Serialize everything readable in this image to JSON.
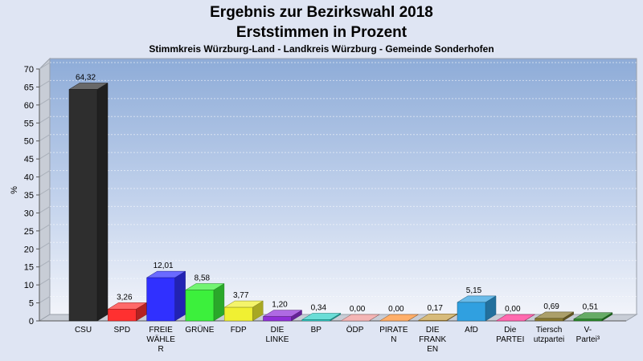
{
  "chart_data": {
    "type": "bar",
    "title": "Ergebnis zur Bezirkswahl 2018",
    "title_line2": "Erststimmen in Prozent",
    "subtitle": "Stimmkreis Würzburg-Land - Landkreis Würzburg - Gemeinde Sonderhofen",
    "ylabel": "%",
    "ylim": [
      0,
      70
    ],
    "yticks": [
      "0",
      "5",
      "10",
      "15",
      "20",
      "25",
      "30",
      "35",
      "40",
      "45",
      "50",
      "55",
      "60",
      "65",
      "70"
    ],
    "categories": [
      [
        "CSU"
      ],
      [
        "SPD"
      ],
      [
        "FREIE",
        "WÄHLE",
        "R"
      ],
      [
        "GRÜNE"
      ],
      [
        "FDP"
      ],
      [
        "DIE",
        "LINKE"
      ],
      [
        "BP"
      ],
      [
        "ÖDP"
      ],
      [
        "PIRATE",
        "N"
      ],
      [
        "DIE",
        "FRANK",
        "EN"
      ],
      [
        "AfD"
      ],
      [
        "Die",
        "PARTEI"
      ],
      [
        "Tiersch",
        "utzpartei"
      ],
      [
        "V-",
        "Partei³"
      ]
    ],
    "values": [
      64.32,
      3.26,
      12.01,
      8.58,
      3.77,
      1.2,
      0.34,
      0.0,
      0.0,
      0.17,
      5.15,
      0.0,
      0.69,
      0.51
    ],
    "value_labels": [
      "64,32",
      "3,26",
      "12,01",
      "8,58",
      "3,77",
      "1,20",
      "0,34",
      "0,00",
      "0,00",
      "0,17",
      "5,15",
      "0,00",
      "0,69",
      "0,51"
    ],
    "colors": [
      "#2e2e2e",
      "#ff3030",
      "#3030ff",
      "#3cf03c",
      "#f0f032",
      "#9030d8",
      "#30d0c8",
      "#f09898",
      "#ff9030",
      "#c8a048",
      "#30a0e0",
      "#ff3090",
      "#8a7a30",
      "#2a8a2a"
    ],
    "grid": true,
    "legend": "none"
  }
}
